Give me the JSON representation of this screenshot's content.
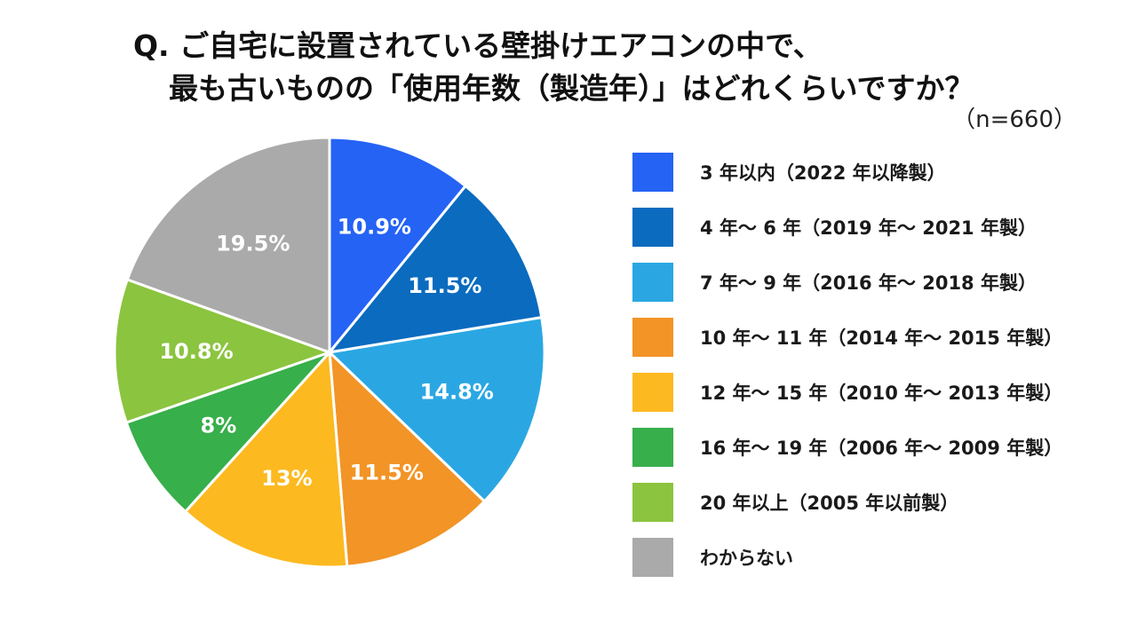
{
  "title": {
    "line1": "Q.  ご自宅に設置されている壁掛けエアコンの中で、",
    "line2": "最も古いものの「使用年数（製造年）」はどれくらいですか？"
  },
  "sample_size": "（n=660）",
  "chart_data": {
    "type": "pie",
    "title": "ご自宅に設置されている壁掛けエアコンの中で、最も古いものの「使用年数（製造年）」はどれくらいですか？",
    "start": "12 o'clock, clockwise",
    "slices": [
      {
        "label": "3 年以内（2022 年以降製）",
        "value": 10.9,
        "display": "10.9%",
        "color": "#2563f5"
      },
      {
        "label": "4 年〜 6 年（2019 年〜 2021 年製）",
        "value": 11.5,
        "display": "11.5%",
        "color": "#0a6bbf"
      },
      {
        "label": "7 年〜 9 年（2016 年〜 2018 年製）",
        "value": 14.8,
        "display": "14.8%",
        "color": "#2aa7e3"
      },
      {
        "label": "10 年〜 11 年（2014 年〜 2015 年製）",
        "value": 11.5,
        "display": "11.5%",
        "color": "#f29426"
      },
      {
        "label": "12 年〜 15 年（2010 年〜 2013 年製）",
        "value": 13,
        "display": "13%",
        "color": "#fcb920"
      },
      {
        "label": "16 年〜 19 年（2006 年〜 2009 年製）",
        "value": 8,
        "display": "8%",
        "color": "#37af4b"
      },
      {
        "label": "20 年以上（2005 年以前製）",
        "value": 10.8,
        "display": "10.8%",
        "color": "#8bc43f"
      },
      {
        "label": "わからない",
        "value": 19.5,
        "display": "19.5%",
        "color": "#aaaaaa"
      }
    ]
  }
}
